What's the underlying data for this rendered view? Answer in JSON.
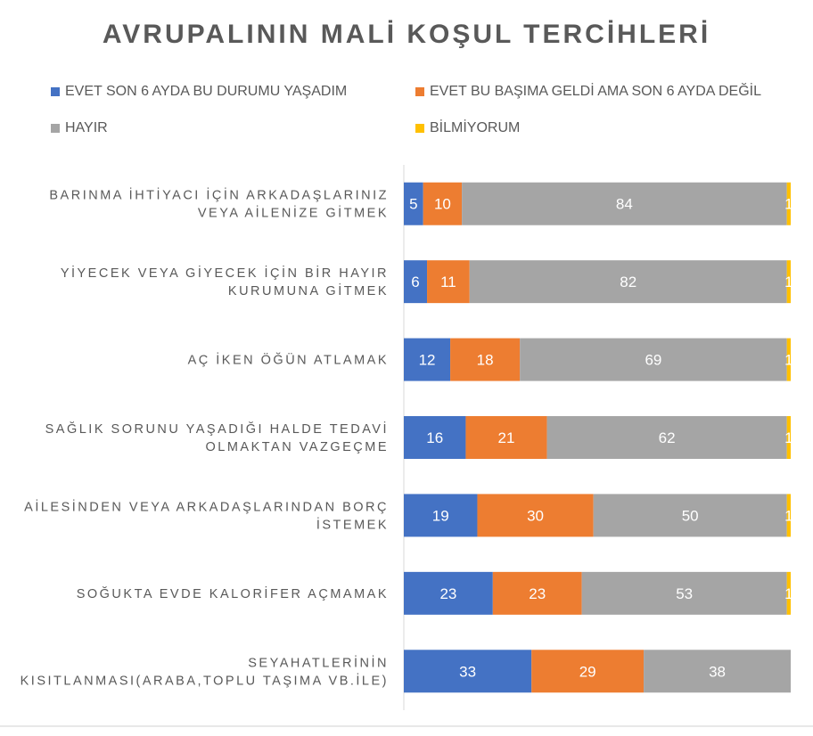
{
  "chart_data": {
    "type": "bar",
    "orientation": "horizontal",
    "stacked": "percent",
    "title": "AVRUPALININ  MALİ KOŞUL TERCİHLERİ",
    "categories": [
      [
        "BARINMA İHTİYACI İÇİN ARKADAŞLARINIZ",
        "VEYA AİLENİZE GİTMEK"
      ],
      [
        "YİYECEK VEYA GİYECEK İÇİN BİR HAYIR",
        "KURUMUNA GİTMEK"
      ],
      [
        "AÇ İKEN ÖĞÜN ATLAMAK"
      ],
      [
        "SAĞLIK SORUNU YAŞADIĞI HALDE TEDAVİ",
        "OLMAKTAN VAZGEÇME"
      ],
      [
        "AİLESİNDEN VEYA ARKADAŞLARINDAN BORÇ",
        "İSTEMEK"
      ],
      [
        "SOĞUKTA EVDE KALORİFER AÇMAMAK"
      ],
      [
        "SEYAHATLERİNİN",
        "KISITLANMASI(ARABA,TOPLU TAŞIMA VB.İLE)"
      ]
    ],
    "series": [
      {
        "name": "EVET SON 6 AYDA BU DURUMU YAŞADIM",
        "color": "#4472C4",
        "values": [
          5,
          6,
          12,
          16,
          19,
          23,
          33
        ]
      },
      {
        "name": "EVET BU BAŞIMA GELDİ AMA SON 6 AYDA DEĞİL",
        "color": "#ED7D31",
        "values": [
          10,
          11,
          18,
          21,
          30,
          23,
          29
        ]
      },
      {
        "name": "HAYIR",
        "color": "#A5A5A5",
        "values": [
          84,
          82,
          69,
          62,
          50,
          53,
          38
        ]
      },
      {
        "name": "BİLMİYORUM",
        "color": "#FFC000",
        "values": [
          1,
          1,
          1,
          1,
          1,
          1,
          0
        ]
      }
    ],
    "legend_position": "top",
    "grid": false
  }
}
